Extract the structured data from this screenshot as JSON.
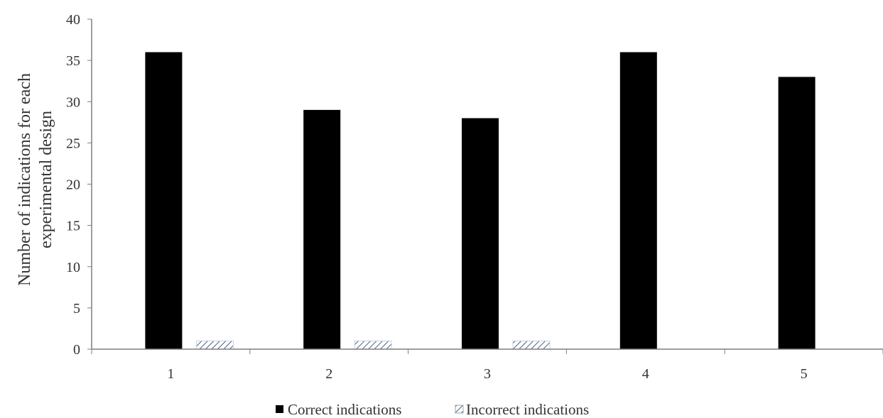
{
  "chart_data": {
    "type": "bar",
    "title": "",
    "xlabel": "",
    "ylabel_lines": [
      "Number of indications for each",
      "experimental design"
    ],
    "categories": [
      "1",
      "2",
      "3",
      "4",
      "5"
    ],
    "series": [
      {
        "name": "Correct indications",
        "values": [
          36,
          29,
          28,
          36,
          33
        ],
        "color": "#000000",
        "pattern": "solid"
      },
      {
        "name": "Incorrect indications",
        "values": [
          1,
          1,
          1,
          0,
          0
        ],
        "color": "#4a5f80",
        "pattern": "diagonal-hatch"
      }
    ],
    "ylim": [
      0,
      40
    ],
    "yticks": [
      "0",
      "5",
      "10",
      "15",
      "20",
      "25",
      "30",
      "35",
      "40"
    ],
    "grid": false,
    "legend_position": "bottom"
  }
}
